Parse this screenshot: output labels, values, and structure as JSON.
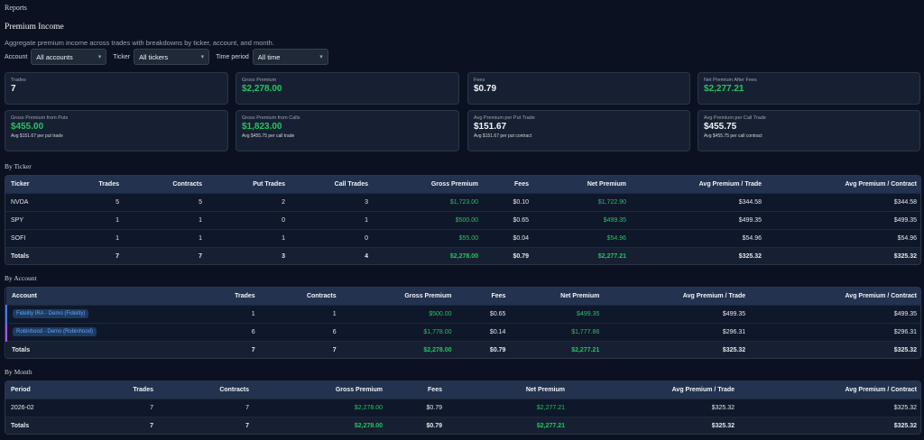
{
  "nav": {
    "title": "Reports"
  },
  "page": {
    "title": "Premium Income",
    "subtitle": "Aggregate premium income across trades with breakdowns by ticker, account, and month."
  },
  "filters": {
    "account_label": "Account",
    "account_value": "All accounts",
    "ticker_label": "Ticker",
    "ticker_value": "All tickers",
    "period_label": "Time period",
    "period_value": "All time"
  },
  "cards": [
    {
      "label": "Trades",
      "value": "7",
      "sub": ""
    },
    {
      "label": "Gross Premium",
      "value": "$2,278.00",
      "sub": ""
    },
    {
      "label": "Fees",
      "value": "$0.79",
      "sub": ""
    },
    {
      "label": "Net Premium After Fees",
      "value": "$2,277.21",
      "sub": ""
    },
    {
      "label": "Gross Premium from Puts",
      "value": "$455.00",
      "sub": "Avg $151.67 per put trade"
    },
    {
      "label": "Gross Premium from Calls",
      "value": "$1,823.00",
      "sub": "Avg $455.75 per call trade"
    },
    {
      "label": "Avg Premium per Put Trade",
      "value": "$151.67",
      "sub": "Avg $151.67 per put contract"
    },
    {
      "label": "Avg Premium per Call Trade",
      "value": "$455.75",
      "sub": "Avg $455.75 per call contract"
    }
  ],
  "by_ticker": {
    "title": "By Ticker",
    "headers": [
      "Ticker",
      "Trades",
      "Contracts",
      "Put Trades",
      "Call Trades",
      "Gross Premium",
      "Fees",
      "Net Premium",
      "Avg Premium / Trade",
      "Avg Premium / Contract"
    ],
    "rows": [
      [
        "NVDA",
        "5",
        "5",
        "2",
        "3",
        "$1,723.00",
        "$0.10",
        "$1,722.90",
        "$344.58",
        "$344.58"
      ],
      [
        "SPY",
        "1",
        "1",
        "0",
        "1",
        "$500.00",
        "$0.65",
        "$499.35",
        "$499.35",
        "$499.35"
      ],
      [
        "SOFI",
        "1",
        "1",
        "1",
        "0",
        "$55.00",
        "$0.04",
        "$54.96",
        "$54.96",
        "$54.96"
      ],
      [
        "Totals",
        "7",
        "7",
        "3",
        "4",
        "$2,278.00",
        "$0.79",
        "$2,277.21",
        "$325.32",
        "$325.32"
      ]
    ]
  },
  "by_account": {
    "title": "By Account",
    "headers": [
      "Account",
      "Trades",
      "Contracts",
      "Gross Premium",
      "Fees",
      "Net Premium",
      "Avg Premium / Trade",
      "Avg Premium / Contract"
    ],
    "rows": [
      [
        "Fidelity IRA - Demo (Fidelity)",
        "1",
        "1",
        "$500.00",
        "$0.65",
        "$499.35",
        "$499.35",
        "$499.35"
      ],
      [
        "Robinhood - Demo (Robinhood)",
        "6",
        "6",
        "$1,778.00",
        "$0.14",
        "$1,777.86",
        "$296.31",
        "$296.31"
      ],
      [
        "Totals",
        "7",
        "7",
        "$2,278.00",
        "$0.79",
        "$2,277.21",
        "$325.32",
        "$325.32"
      ]
    ]
  },
  "by_month": {
    "title": "By Month",
    "headers": [
      "Period",
      "Trades",
      "Contracts",
      "Gross Premium",
      "Fees",
      "Net Premium",
      "Avg Premium / Trade",
      "Avg Premium / Contract"
    ],
    "rows": [
      [
        "2026-02",
        "7",
        "7",
        "$2,278.00",
        "$0.79",
        "$2,277.21",
        "$325.32",
        "$325.32"
      ],
      [
        "Totals",
        "7",
        "7",
        "$2,278.00",
        "$0.79",
        "$2,277.21",
        "$325.32",
        "$325.32"
      ]
    ]
  }
}
